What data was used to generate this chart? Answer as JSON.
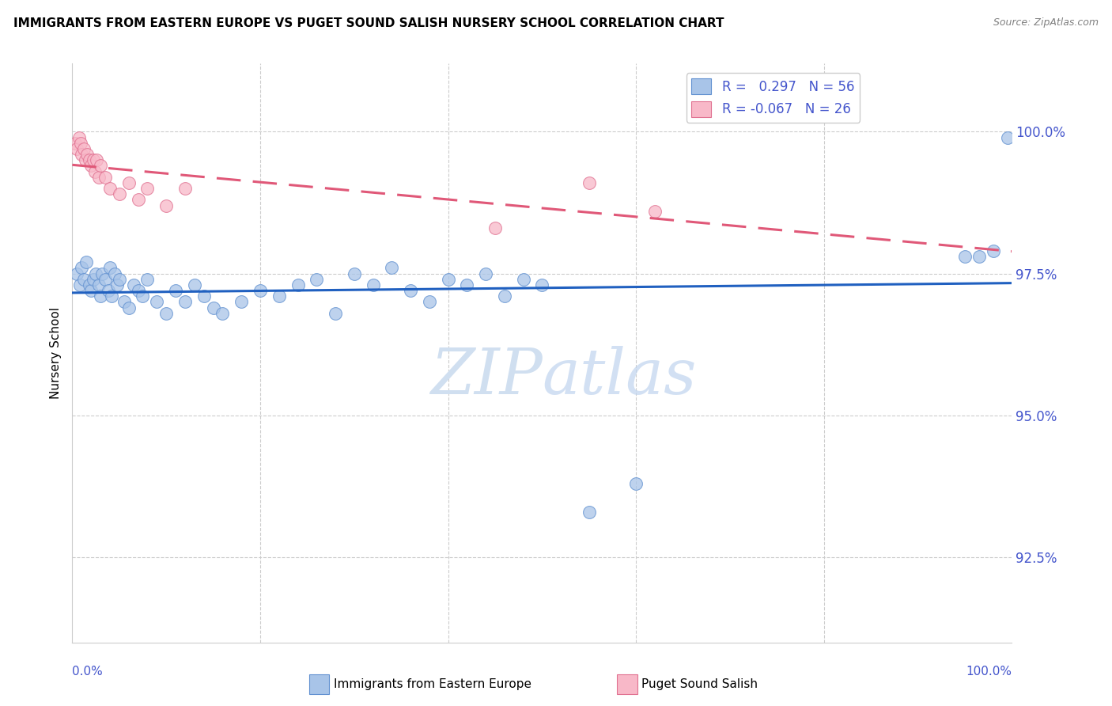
{
  "title": "IMMIGRANTS FROM EASTERN EUROPE VS PUGET SOUND SALISH NURSERY SCHOOL CORRELATION CHART",
  "source": "Source: ZipAtlas.com",
  "ylabel": "Nursery School",
  "x_min": 0.0,
  "x_max": 100.0,
  "y_min": 91.0,
  "y_max": 101.2,
  "legend_blue_label": "Immigrants from Eastern Europe",
  "legend_pink_label": "Puget Sound Salish",
  "R_blue": 0.297,
  "N_blue": 56,
  "R_pink": -0.067,
  "N_pink": 26,
  "blue_color": "#a8c4e8",
  "blue_edge_color": "#6090d0",
  "blue_line_color": "#2060c0",
  "pink_color": "#f8b8c8",
  "pink_edge_color": "#e07090",
  "pink_line_color": "#e05878",
  "grid_color": "#cccccc",
  "watermark_color": "#d0dff0",
  "background_color": "#ffffff",
  "tick_label_color": "#4455cc",
  "y_ticks": [
    92.5,
    95.0,
    97.5,
    100.0
  ],
  "blue_x": [
    0.5,
    0.8,
    1.0,
    1.2,
    1.5,
    1.8,
    2.0,
    2.2,
    2.5,
    2.8,
    3.0,
    3.2,
    3.5,
    3.8,
    4.0,
    4.2,
    4.5,
    4.8,
    5.0,
    5.5,
    6.0,
    6.5,
    7.0,
    7.5,
    8.0,
    9.0,
    10.0,
    11.0,
    12.0,
    13.0,
    14.0,
    15.0,
    16.0,
    18.0,
    20.0,
    22.0,
    24.0,
    26.0,
    28.0,
    30.0,
    32.0,
    34.0,
    36.0,
    38.0,
    40.0,
    42.0,
    44.0,
    46.0,
    48.0,
    50.0,
    55.0,
    60.0,
    95.0,
    96.5,
    98.0,
    99.5
  ],
  "blue_y": [
    97.5,
    97.3,
    97.6,
    97.4,
    97.7,
    97.3,
    97.2,
    97.4,
    97.5,
    97.3,
    97.1,
    97.5,
    97.4,
    97.2,
    97.6,
    97.1,
    97.5,
    97.3,
    97.4,
    97.0,
    96.9,
    97.3,
    97.2,
    97.1,
    97.4,
    97.0,
    96.8,
    97.2,
    97.0,
    97.3,
    97.1,
    96.9,
    96.8,
    97.0,
    97.2,
    97.1,
    97.3,
    97.4,
    96.8,
    97.5,
    97.3,
    97.6,
    97.2,
    97.0,
    97.4,
    97.3,
    97.5,
    97.1,
    97.4,
    97.3,
    93.3,
    93.8,
    97.8,
    97.8,
    97.9,
    99.9
  ],
  "pink_x": [
    0.3,
    0.5,
    0.7,
    0.9,
    1.0,
    1.2,
    1.4,
    1.6,
    1.8,
    2.0,
    2.2,
    2.4,
    2.6,
    2.8,
    3.0,
    3.5,
    4.0,
    5.0,
    6.0,
    7.0,
    8.0,
    10.0,
    12.0,
    45.0,
    55.0,
    62.0
  ],
  "pink_y": [
    99.8,
    99.7,
    99.9,
    99.8,
    99.6,
    99.7,
    99.5,
    99.6,
    99.5,
    99.4,
    99.5,
    99.3,
    99.5,
    99.2,
    99.4,
    99.2,
    99.0,
    98.9,
    99.1,
    98.8,
    99.0,
    98.7,
    99.0,
    98.3,
    99.1,
    98.6
  ]
}
